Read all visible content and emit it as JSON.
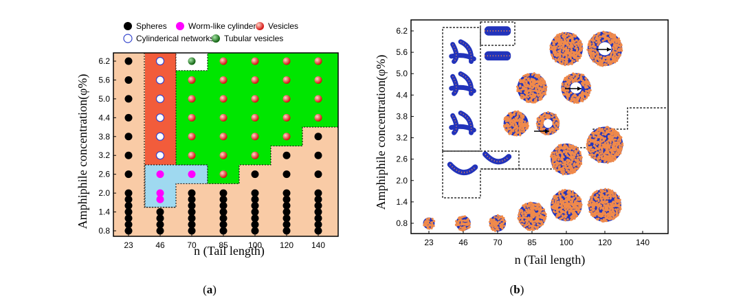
{
  "chart_data": [
    {
      "panel": "a",
      "type": "scatter",
      "xlabel": "n (Tail length)",
      "ylabel": "Amphiphile concentration(φ%)",
      "x_ticks": [
        "23",
        "46",
        "70",
        "85",
        "100",
        "120",
        "140"
      ],
      "y_ticks": [
        "0.8",
        "1.4",
        "2.0",
        "2.6",
        "3.2",
        "3.8",
        "4.4",
        "5.0",
        "5.6",
        "6.2"
      ],
      "ylim": [
        0.5,
        6.5
      ],
      "legend": [
        {
          "key": "spheres",
          "label": "Spheres"
        },
        {
          "key": "worm",
          "label": "Worm-like cylinders"
        },
        {
          "key": "vesicles",
          "label": "Vesicles"
        },
        {
          "key": "networks",
          "label": "Cylinderical networks"
        },
        {
          "key": "tubular",
          "label": "Tubular vesicles"
        }
      ],
      "legend_position": "top",
      "regions": [
        {
          "key": "spheres",
          "color": "#f9cba6"
        },
        {
          "key": "networks",
          "color": "#f25c3b"
        },
        {
          "key": "worm",
          "color": "#9fd9f0"
        },
        {
          "key": "vesicles",
          "color": "#00e600"
        },
        {
          "key": "tubular",
          "color": "#ffffff"
        }
      ],
      "series": [
        {
          "key": "spheres",
          "color": "#000000",
          "points": [
            [
              "23",
              0.8
            ],
            [
              "23",
              1.0
            ],
            [
              "23",
              1.2
            ],
            [
              "23",
              1.4
            ],
            [
              "23",
              1.6
            ],
            [
              "23",
              1.8
            ],
            [
              "23",
              2.0
            ],
            [
              "23",
              2.6
            ],
            [
              "23",
              3.2
            ],
            [
              "23",
              3.8
            ],
            [
              "23",
              4.4
            ],
            [
              "23",
              5.0
            ],
            [
              "23",
              5.6
            ],
            [
              "23",
              6.2
            ],
            [
              "46",
              0.8
            ],
            [
              "46",
              1.0
            ],
            [
              "46",
              1.2
            ],
            [
              "46",
              1.4
            ],
            [
              "70",
              0.8
            ],
            [
              "70",
              1.0
            ],
            [
              "70",
              1.2
            ],
            [
              "70",
              1.4
            ],
            [
              "70",
              1.6
            ],
            [
              "70",
              1.8
            ],
            [
              "70",
              2.0
            ],
            [
              "85",
              0.8
            ],
            [
              "85",
              1.0
            ],
            [
              "85",
              1.2
            ],
            [
              "85",
              1.4
            ],
            [
              "85",
              1.6
            ],
            [
              "85",
              1.8
            ],
            [
              "85",
              2.0
            ],
            [
              "100",
              0.8
            ],
            [
              "100",
              1.0
            ],
            [
              "100",
              1.2
            ],
            [
              "100",
              1.4
            ],
            [
              "100",
              1.6
            ],
            [
              "100",
              1.8
            ],
            [
              "100",
              2.0
            ],
            [
              "100",
              2.6
            ],
            [
              "120",
              0.8
            ],
            [
              "120",
              1.0
            ],
            [
              "120",
              1.2
            ],
            [
              "120",
              1.4
            ],
            [
              "120",
              1.6
            ],
            [
              "120",
              1.8
            ],
            [
              "120",
              2.0
            ],
            [
              "120",
              2.6
            ],
            [
              "120",
              3.2
            ],
            [
              "140",
              0.8
            ],
            [
              "140",
              1.0
            ],
            [
              "140",
              1.2
            ],
            [
              "140",
              1.4
            ],
            [
              "140",
              1.6
            ],
            [
              "140",
              1.8
            ],
            [
              "140",
              2.0
            ],
            [
              "140",
              2.6
            ],
            [
              "140",
              3.2
            ],
            [
              "140",
              3.8
            ]
          ]
        },
        {
          "key": "networks",
          "color": "#ffffff",
          "points": [
            [
              "46",
              3.2
            ],
            [
              "46",
              3.8
            ],
            [
              "46",
              4.4
            ],
            [
              "46",
              5.0
            ],
            [
              "46",
              5.6
            ],
            [
              "46",
              6.2
            ]
          ]
        },
        {
          "key": "worm",
          "color": "#ff00ff",
          "points": [
            [
              "46",
              1.8
            ],
            [
              "46",
              2.0
            ],
            [
              "46",
              2.6
            ],
            [
              "70",
              2.6
            ]
          ]
        },
        {
          "key": "vesicles",
          "color": "#e8191a",
          "points": [
            [
              "70",
              3.2
            ],
            [
              "70",
              3.8
            ],
            [
              "70",
              4.4
            ],
            [
              "70",
              5.0
            ],
            [
              "70",
              5.6
            ],
            [
              "85",
              2.6
            ],
            [
              "85",
              3.2
            ],
            [
              "85",
              3.8
            ],
            [
              "85",
              4.4
            ],
            [
              "85",
              5.0
            ],
            [
              "85",
              5.6
            ],
            [
              "85",
              6.2
            ],
            [
              "100",
              3.2
            ],
            [
              "100",
              3.8
            ],
            [
              "100",
              4.4
            ],
            [
              "100",
              5.0
            ],
            [
              "100",
              5.6
            ],
            [
              "100",
              6.2
            ],
            [
              "120",
              3.8
            ],
            [
              "120",
              4.4
            ],
            [
              "120",
              5.0
            ],
            [
              "120",
              5.6
            ],
            [
              "120",
              6.2
            ],
            [
              "140",
              4.4
            ],
            [
              "140",
              5.0
            ],
            [
              "140",
              5.6
            ],
            [
              "140",
              6.2
            ]
          ]
        },
        {
          "key": "tubular",
          "color": "#1a7a1a",
          "points": [
            [
              "70",
              6.2
            ]
          ]
        }
      ]
    },
    {
      "panel": "b",
      "type": "scatter",
      "xlabel": "n (Tail length)",
      "ylabel": "Amphiphile concentration(φ%)",
      "x_ticks": [
        "23",
        "46",
        "70",
        "85",
        "100",
        "120",
        "140"
      ],
      "y_ticks": [
        "0.8",
        "1.4",
        "2.0",
        "2.6",
        "3.2",
        "3.8",
        "4.4",
        "5.0",
        "5.6",
        "6.2"
      ],
      "ylim": [
        0.5,
        6.5
      ],
      "snapshots": [
        {
          "x": "23",
          "y": 0.8,
          "kind": "sphere",
          "size": 0.35
        },
        {
          "x": "46",
          "y": 0.8,
          "kind": "sphere",
          "size": 0.45
        },
        {
          "x": "70",
          "y": 0.8,
          "kind": "sphere",
          "size": 0.5
        },
        {
          "x": "85",
          "y": 1.0,
          "kind": "sphere",
          "size": 0.85
        },
        {
          "x": "100",
          "y": 1.3,
          "kind": "sphere",
          "size": 0.95
        },
        {
          "x": "120",
          "y": 1.3,
          "kind": "sphere",
          "size": 1.0
        },
        {
          "x": "100",
          "y": 2.6,
          "kind": "sphere",
          "size": 0.95
        },
        {
          "x": "120",
          "y": 3.0,
          "kind": "sphere",
          "size": 1.1
        },
        {
          "x": "46",
          "y": 5.6,
          "kind": "network",
          "size": 0.8
        },
        {
          "x": "46",
          "y": 4.7,
          "kind": "network",
          "size": 0.8
        },
        {
          "x": "46",
          "y": 3.6,
          "kind": "network",
          "size": 0.8
        },
        {
          "x": "46",
          "y": 2.3,
          "kind": "worm",
          "size": 0.8
        },
        {
          "x": "70",
          "y": 2.6,
          "kind": "worm",
          "size": 0.75
        },
        {
          "x": "70",
          "y": 6.2,
          "kind": "tube",
          "size": 0.8
        },
        {
          "x": "70",
          "y": 5.5,
          "kind": "tube",
          "size": 0.8
        },
        {
          "x": "78",
          "y": 3.6,
          "kind": "sphere",
          "size": 0.75
        },
        {
          "x": "92",
          "y": 3.6,
          "kind": "vesicle",
          "size": 0.7
        },
        {
          "x": "85",
          "y": 4.6,
          "kind": "sphere",
          "size": 0.9
        },
        {
          "x": "105",
          "y": 4.6,
          "kind": "vesicle",
          "size": 0.9
        },
        {
          "x": "100",
          "y": 5.7,
          "kind": "sphere",
          "size": 1.0
        },
        {
          "x": "120",
          "y": 5.7,
          "kind": "vesicle",
          "size": 1.05
        }
      ]
    }
  ],
  "labels": [
    {
      "open": "(",
      "letter": "a",
      "close": ")"
    },
    {
      "open": "(",
      "letter": "b",
      "close": ")"
    }
  ],
  "colors": {
    "sphere_shell": "#f08a4b",
    "sphere_core": "#2233bb",
    "axis": "#000000"
  }
}
